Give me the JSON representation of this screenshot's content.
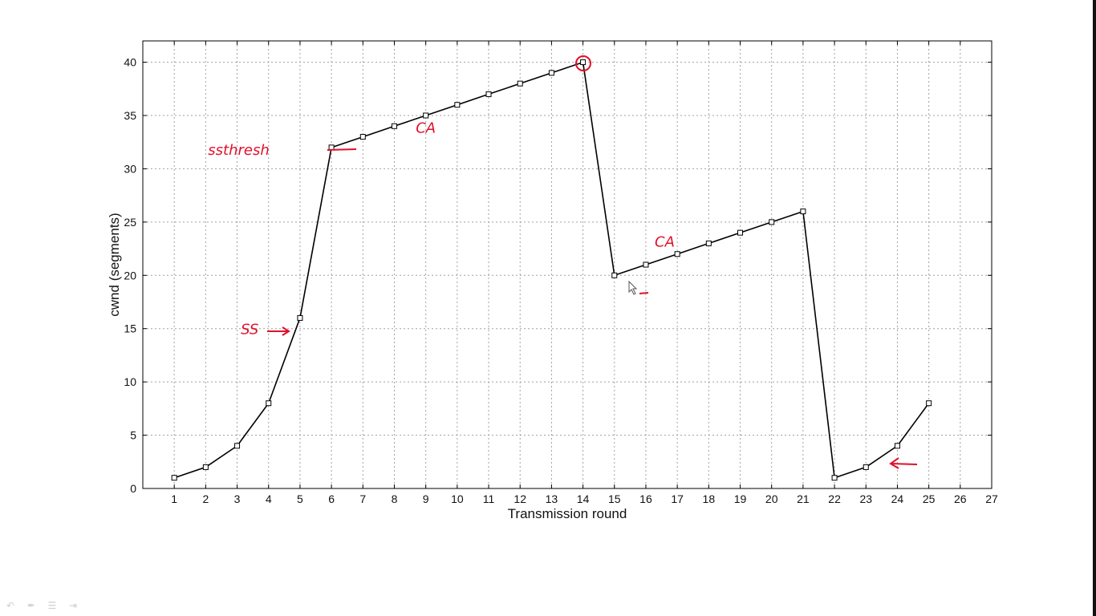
{
  "chart_data": {
    "type": "line",
    "xlabel": "Transmission round",
    "ylabel": "cwnd (segments)",
    "xlim": [
      0,
      27
    ],
    "ylim": [
      0,
      42
    ],
    "x_ticks": [
      1,
      2,
      3,
      4,
      5,
      6,
      7,
      8,
      9,
      10,
      11,
      12,
      13,
      14,
      15,
      16,
      17,
      18,
      19,
      20,
      21,
      22,
      23,
      24,
      25,
      26,
      27
    ],
    "y_ticks": [
      0,
      5,
      10,
      15,
      20,
      25,
      30,
      35,
      40
    ],
    "grid": true,
    "marker": "square",
    "series": [
      {
        "x": [
          1,
          2,
          3,
          4,
          5,
          6,
          7,
          8,
          9,
          10,
          11,
          12,
          13,
          14,
          15,
          16,
          17,
          18,
          19,
          20,
          21,
          22,
          23,
          24,
          25
        ],
        "values": [
          1,
          2,
          4,
          8,
          16,
          32,
          33,
          34,
          35,
          36,
          37,
          38,
          39,
          40,
          20,
          21,
          22,
          23,
          24,
          25,
          26,
          1,
          2,
          4,
          8
        ]
      }
    ],
    "annotations": [
      {
        "text": "ssthresh",
        "x": 3.05,
        "y": 31.3
      },
      {
        "text": "CA",
        "x": 9.0,
        "y": 33.4
      },
      {
        "text": "SS",
        "x": 3.4,
        "y": 14.5
      },
      {
        "text": "CA",
        "x": 16.6,
        "y": 22.7
      }
    ],
    "annotation_color": "#e0102a",
    "line_color": "#000000",
    "grid_color": "#a0a0a0"
  },
  "toolbar": {
    "icons": [
      "undo-icon",
      "pen-icon",
      "list-icon",
      "next-icon"
    ]
  }
}
